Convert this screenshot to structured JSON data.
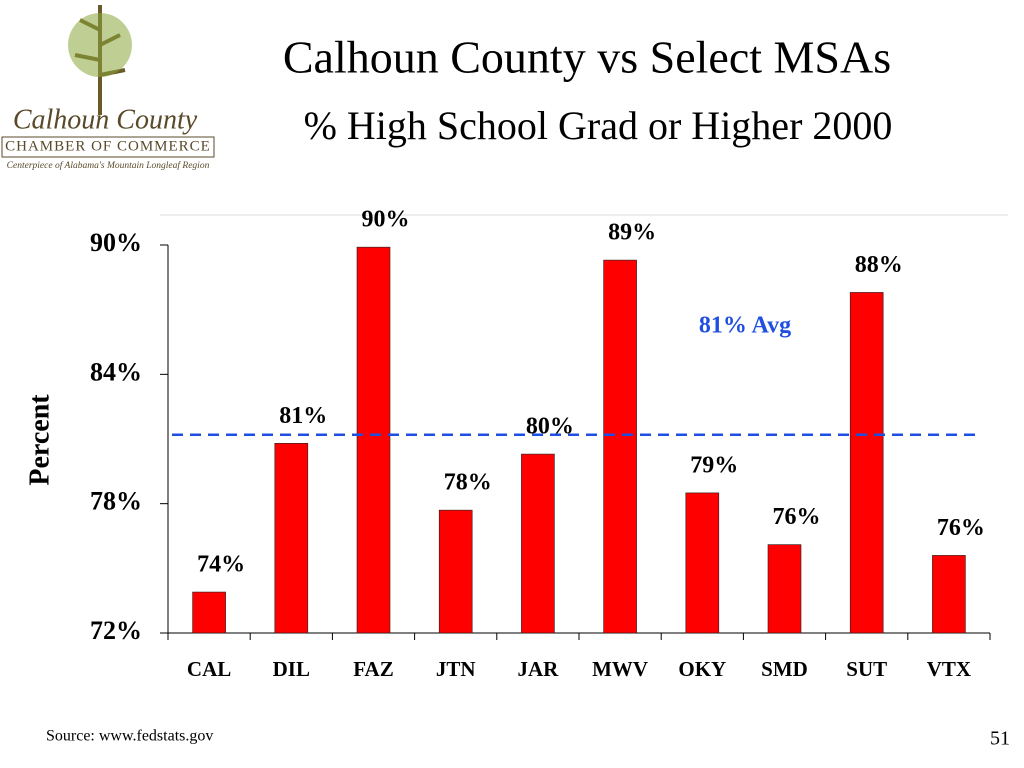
{
  "logo": {
    "name": "Calhoun County",
    "org": "CHAMBER OF COMMERCE",
    "tagline": "Centerpiece of Alabama's Mountain Longleaf Region"
  },
  "chart_data": {
    "type": "bar",
    "title": "Calhoun County vs Select MSAs",
    "subtitle": "% High School Grad or Higher 2000",
    "y_label": "Percent",
    "categories": [
      "CAL",
      "DIL",
      "FAZ",
      "JTN",
      "JAR",
      "MWV",
      "OKY",
      "SMD",
      "SUT",
      "VTX"
    ],
    "values": [
      73.9,
      80.8,
      89.9,
      77.7,
      80.3,
      89.3,
      78.5,
      76.1,
      87.8,
      75.6
    ],
    "value_labels": [
      "74%",
      "81%",
      "90%",
      "78%",
      "80%",
      "89%",
      "79%",
      "76%",
      "88%",
      "76%"
    ],
    "color": "#ff0000",
    "ylim": [
      72,
      90
    ],
    "yticks": [
      {
        "value": 72,
        "label": "72%"
      },
      {
        "value": 78,
        "label": "78%"
      },
      {
        "value": 84,
        "label": "84%"
      },
      {
        "value": 90,
        "label": "90%"
      }
    ],
    "average": {
      "value": 81.2,
      "label": "81% Avg",
      "color": "#1f4fe0"
    },
    "source": "Source: www.fedstats.gov"
  },
  "page_number": "51"
}
